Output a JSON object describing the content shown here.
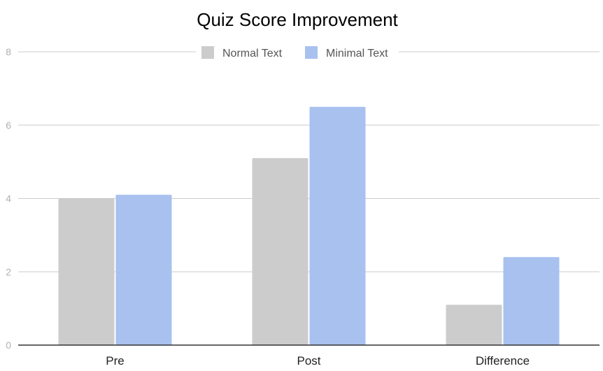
{
  "chart_data": {
    "type": "bar",
    "title": "Quiz Score Improvement",
    "categories": [
      "Pre",
      "Post",
      "Difference"
    ],
    "series": [
      {
        "name": "Normal Text",
        "color": "#cccccc",
        "values": [
          4.0,
          5.1,
          1.1
        ]
      },
      {
        "name": "Minimal Text",
        "color": "#a9c1ef",
        "values": [
          4.1,
          6.5,
          2.4
        ]
      }
    ],
    "xlabel": "",
    "ylabel": "",
    "ylim": [
      0,
      8
    ],
    "yticks": [
      "0",
      "2",
      "4",
      "6",
      "8"
    ],
    "grid": true,
    "legend_position": "top"
  }
}
